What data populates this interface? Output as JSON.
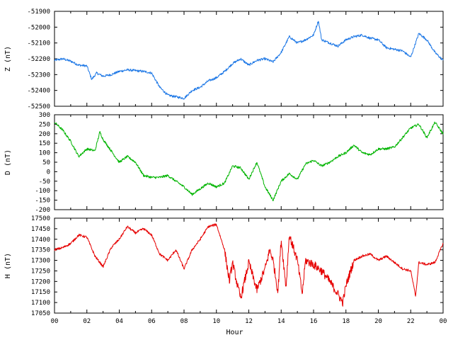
{
  "chart_data": [
    {
      "type": "line",
      "ylabel": "Z (nT)",
      "ylim": [
        -52500,
        -51900
      ],
      "yticks": [
        -51900,
        -52000,
        -52100,
        -52200,
        -52300,
        -52400,
        -52500
      ],
      "color": "#1e78e6",
      "x": [
        0,
        0.5,
        1,
        1.5,
        2,
        2.3,
        2.6,
        3,
        3.5,
        4,
        4.5,
        5,
        5.5,
        6,
        6.5,
        7,
        7.5,
        8,
        8.5,
        9,
        9.5,
        10,
        10.5,
        11,
        11.5,
        12,
        12.5,
        13,
        13.5,
        14,
        14.5,
        15,
        15.5,
        16,
        16.3,
        16.5,
        17,
        17.5,
        18,
        18.5,
        19,
        19.5,
        20,
        20.5,
        21,
        21.5,
        22,
        22.5,
        23,
        23.5,
        24
      ],
      "y": [
        -52210,
        -52200,
        -52215,
        -52240,
        -52245,
        -52330,
        -52290,
        -52310,
        -52300,
        -52280,
        -52270,
        -52275,
        -52280,
        -52290,
        -52380,
        -52430,
        -52440,
        -52450,
        -52400,
        -52380,
        -52340,
        -52320,
        -52280,
        -52230,
        -52200,
        -52240,
        -52210,
        -52200,
        -52220,
        -52160,
        -52060,
        -52100,
        -52080,
        -52050,
        -51960,
        -52080,
        -52100,
        -52120,
        -52080,
        -52060,
        -52050,
        -52070,
        -52080,
        -52130,
        -52140,
        -52150,
        -52190,
        -52040,
        -52080,
        -52160,
        -52210
      ]
    },
    {
      "type": "line",
      "ylabel": "D (nT)",
      "ylim": [
        -200,
        300
      ],
      "yticks": [
        300,
        250,
        200,
        150,
        100,
        50,
        0,
        -50,
        -100,
        -150,
        -200
      ],
      "color": "#00b400",
      "x": [
        0,
        0.5,
        1,
        1.5,
        2,
        2.5,
        2.8,
        3,
        3.5,
        4,
        4.5,
        5,
        5.5,
        6,
        6.5,
        7,
        7.5,
        8,
        8.5,
        9,
        9.5,
        10,
        10.5,
        11,
        11.5,
        12,
        12.5,
        13,
        13.5,
        14,
        14.5,
        15,
        15.5,
        16,
        16.5,
        17,
        17.5,
        18,
        18.5,
        19,
        19.5,
        20,
        20.5,
        21,
        21.5,
        22,
        22.5,
        23,
        23.5,
        24
      ],
      "y": [
        260,
        220,
        160,
        80,
        120,
        110,
        210,
        170,
        110,
        50,
        80,
        50,
        -20,
        -30,
        -30,
        -20,
        -50,
        -80,
        -120,
        -90,
        -60,
        -80,
        -60,
        30,
        20,
        -40,
        50,
        -80,
        -150,
        -50,
        -10,
        -40,
        40,
        60,
        30,
        50,
        80,
        100,
        140,
        100,
        90,
        120,
        120,
        130,
        180,
        230,
        250,
        180,
        260,
        200
      ]
    },
    {
      "type": "line",
      "ylabel": "H (nT)",
      "ylim": [
        17050,
        17500
      ],
      "yticks": [
        17500,
        17450,
        17400,
        17350,
        17300,
        17250,
        17200,
        17150,
        17100,
        17050
      ],
      "color": "#e60000",
      "xlabel": "Hour",
      "xlim": [
        0,
        24
      ],
      "xtick_labels": [
        "00",
        "02",
        "04",
        "06",
        "08",
        "10",
        "12",
        "14",
        "16",
        "18",
        "20",
        "22",
        "00"
      ],
      "x": [
        0,
        0.5,
        1,
        1.5,
        2,
        2.5,
        3,
        3.5,
        4,
        4.5,
        5,
        5.5,
        6,
        6.5,
        7,
        7.5,
        8,
        8.5,
        9,
        9.5,
        10,
        10.5,
        10.8,
        11,
        11.3,
        11.5,
        12,
        12.5,
        13,
        13.3,
        13.5,
        13.8,
        14,
        14.3,
        14.5,
        15,
        15.3,
        15.5,
        16,
        16.5,
        17,
        17.5,
        17.8,
        18,
        18.5,
        19,
        19.5,
        20,
        20.5,
        21,
        21.5,
        22,
        22.3,
        22.5,
        23,
        23.5,
        24
      ],
      "y": [
        17350,
        17360,
        17380,
        17420,
        17410,
        17320,
        17270,
        17360,
        17400,
        17460,
        17430,
        17450,
        17420,
        17330,
        17300,
        17350,
        17260,
        17350,
        17400,
        17460,
        17470,
        17350,
        17200,
        17290,
        17180,
        17120,
        17290,
        17160,
        17260,
        17350,
        17300,
        17150,
        17400,
        17170,
        17420,
        17300,
        17140,
        17300,
        17280,
        17250,
        17200,
        17140,
        17100,
        17180,
        17300,
        17320,
        17330,
        17300,
        17320,
        17290,
        17260,
        17250,
        17130,
        17290,
        17280,
        17290,
        17380
      ]
    }
  ]
}
